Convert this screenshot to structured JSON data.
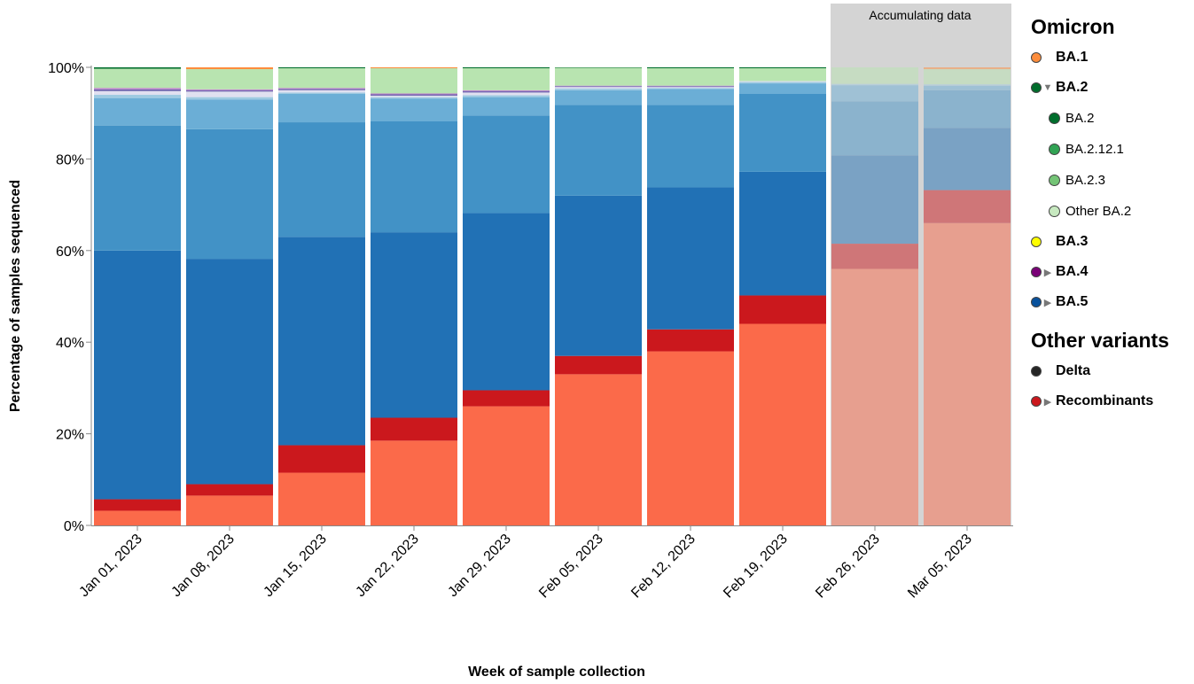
{
  "chart_data": {
    "type": "bar",
    "stacked": true,
    "xlabel": "Week of sample collection",
    "ylabel": "Percentage of samples sequenced",
    "ylim": [
      0,
      100
    ],
    "yticks": [
      "0%",
      "20%",
      "40%",
      "60%",
      "80%",
      "100%"
    ],
    "categories": [
      "Jan 01, 2023",
      "Jan 08, 2023",
      "Jan 15, 2023",
      "Jan 22, 2023",
      "Jan 29, 2023",
      "Feb 05, 2023",
      "Feb 12, 2023",
      "Feb 19, 2023",
      "Feb 26, 2023",
      "Mar 05, 2023"
    ],
    "accumulating_label": "Accumulating data",
    "accumulating_categories": [
      "Feb 26, 2023",
      "Mar 05, 2023"
    ],
    "series": [
      {
        "color": "#fb6a4a",
        "values": [
          3.2,
          6.5,
          11.5,
          18.5,
          26.0,
          33.0,
          38.0,
          44.0,
          56.0,
          66.0
        ]
      },
      {
        "color": "#cb181d",
        "values": [
          2.5,
          2.5,
          6.0,
          5.0,
          3.5,
          4.0,
          4.8,
          6.2,
          5.5,
          7.2
        ]
      },
      {
        "color": "#2171b5",
        "values": [
          54.3,
          49.2,
          45.5,
          40.5,
          38.7,
          35.0,
          31.0,
          27.0,
          19.3,
          13.6
        ]
      },
      {
        "color": "#4292c6",
        "values": [
          27.3,
          28.3,
          25.0,
          24.2,
          21.3,
          19.8,
          18.0,
          17.0,
          11.8,
          8.2
        ]
      },
      {
        "color": "#6baed6",
        "values": [
          6.0,
          6.5,
          6.2,
          5.0,
          4.0,
          3.2,
          3.5,
          2.3,
          3.5,
          1.0
        ]
      },
      {
        "color": "#9ecae1",
        "values": [
          0.7,
          0.5,
          0.3,
          0.3,
          0.4,
          0.4,
          0.2,
          0.3,
          0.3,
          0.3
        ]
      },
      {
        "color": "#e0e0f0",
        "values": [
          0.8,
          1.2,
          0.5,
          0.3,
          0.6,
          0.3,
          0.2,
          0.2,
          0,
          0
        ]
      },
      {
        "color": "#756bb1",
        "values": [
          0.4,
          0.3,
          0.3,
          0.3,
          0.3,
          0.2,
          0.2,
          0,
          0,
          0
        ]
      },
      {
        "color": "#bc7ec9",
        "values": [
          0.3,
          0.2,
          0.2,
          0.2,
          0.2,
          0.1,
          0.1,
          0,
          0,
          0
        ]
      },
      {
        "color": "#b8e4b0",
        "values": [
          4.2,
          4.4,
          4.3,
          5.5,
          4.8,
          3.9,
          3.8,
          2.8,
          3.8,
          3.3
        ]
      },
      {
        "color": "#006d2c",
        "values": [
          0.3,
          0,
          0.2,
          0,
          0.2,
          0.1,
          0.2,
          0.2,
          0,
          0
        ]
      },
      {
        "color": "#fd8d3c",
        "values": [
          0,
          0.4,
          0,
          0.2,
          0,
          0,
          0,
          0,
          0,
          0.4
        ]
      }
    ]
  },
  "legend": {
    "groups": [
      {
        "heading": "Omicron",
        "items": [
          {
            "label": "BA.1",
            "color": "#fd8d3c",
            "arrow": "none"
          },
          {
            "label": "BA.2",
            "color": "#006d2c",
            "arrow": "down"
          },
          {
            "label": "BA.2",
            "color": "#006d2c",
            "sub": true
          },
          {
            "label": "BA.2.12.1",
            "color": "#31a354",
            "sub": true
          },
          {
            "label": "BA.2.3",
            "color": "#74c476",
            "sub": true
          },
          {
            "label": "Other BA.2",
            "color": "#c7e9c0",
            "sub": true
          },
          {
            "label": "BA.3",
            "color": "#ffff00",
            "arrow": "none"
          },
          {
            "label": "BA.4",
            "color": "#7a0177",
            "arrow": "right"
          },
          {
            "label": "BA.5",
            "color": "#08519c",
            "arrow": "right"
          }
        ]
      },
      {
        "heading": "Other variants",
        "items": [
          {
            "label": "Delta",
            "color": "#252525",
            "arrow": "none"
          },
          {
            "label": "Recombinants",
            "color": "#cb181d",
            "arrow": "right"
          }
        ]
      }
    ]
  }
}
